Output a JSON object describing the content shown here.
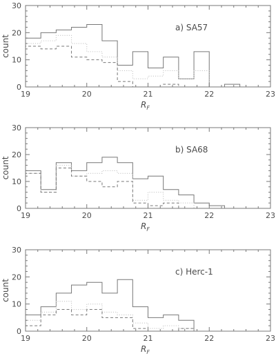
{
  "chart_data": [
    {
      "type": "histogram",
      "panel_label": "a) SA57",
      "xlabel": "R",
      "xlabel_subscript": "F",
      "ylabel": "count",
      "xlim": [
        19,
        23
      ],
      "ylim": [
        0,
        30
      ],
      "xticks": [
        "19",
        "20",
        "21",
        "22",
        "23"
      ],
      "yticks": [
        "0",
        "10",
        "20",
        "30"
      ],
      "bin_edges": [
        19.0,
        19.25,
        19.5,
        19.75,
        20.0,
        20.25,
        20.5,
        20.75,
        21.0,
        21.25,
        21.5,
        21.75,
        22.0,
        22.25,
        22.5
      ],
      "series": [
        {
          "style": "solid",
          "color": "#777777",
          "values": [
            18,
            20,
            21,
            22,
            23,
            17,
            8,
            13,
            7,
            11,
            3,
            13,
            0,
            1
          ]
        },
        {
          "style": "dotted",
          "color": "#c8c8c8",
          "values": [
            16,
            17,
            19,
            16,
            13,
            11,
            6,
            3,
            4,
            6,
            3,
            6,
            0,
            0
          ]
        },
        {
          "style": "dashed",
          "color": "#777777",
          "values": [
            15,
            14,
            15,
            11,
            10,
            9,
            2,
            0,
            0,
            1,
            0,
            0,
            0,
            0
          ]
        }
      ]
    },
    {
      "type": "histogram",
      "panel_label": "b) SA68",
      "xlabel": "R",
      "xlabel_subscript": "F",
      "ylabel": "count",
      "xlim": [
        19,
        23
      ],
      "ylim": [
        0,
        30
      ],
      "xticks": [
        "19",
        "20",
        "21",
        "22",
        "23"
      ],
      "yticks": [
        "0",
        "10",
        "20",
        "30"
      ],
      "bin_edges": [
        19.0,
        19.25,
        19.5,
        19.75,
        20.0,
        20.25,
        20.5,
        20.75,
        21.0,
        21.25,
        21.5,
        21.75,
        22.0,
        22.25,
        22.5
      ],
      "series": [
        {
          "style": "solid",
          "color": "#777777",
          "values": [
            14,
            7,
            17,
            14,
            17,
            19,
            17,
            11,
            12,
            7,
            5,
            2,
            1,
            0
          ]
        },
        {
          "style": "dotted",
          "color": "#c8c8c8",
          "values": [
            13,
            6,
            16,
            12,
            13,
            14,
            13,
            3,
            6,
            3,
            2,
            0,
            0,
            0
          ]
        },
        {
          "style": "dashed",
          "color": "#777777",
          "values": [
            13,
            6,
            15,
            12,
            10,
            8,
            10,
            2,
            1,
            2,
            0,
            0,
            0,
            0
          ]
        }
      ]
    },
    {
      "type": "histogram",
      "panel_label": "c) Herc-1",
      "xlabel": "R",
      "xlabel_subscript": "F",
      "ylabel": "count",
      "xlim": [
        19,
        23
      ],
      "ylim": [
        0,
        30
      ],
      "xticks": [
        "19",
        "20",
        "21",
        "22",
        "23"
      ],
      "yticks": [
        "0",
        "10",
        "20",
        "30"
      ],
      "bin_edges": [
        19.0,
        19.25,
        19.5,
        19.75,
        20.0,
        20.25,
        20.5,
        20.75,
        21.0,
        21.25,
        21.5,
        21.75,
        22.0,
        22.25,
        22.5
      ],
      "series": [
        {
          "style": "solid",
          "color": "#777777",
          "values": [
            6,
            9,
            14,
            17,
            18,
            14,
            19,
            9,
            5,
            6,
            4,
            0,
            0,
            0
          ]
        },
        {
          "style": "dotted",
          "color": "#c8c8c8",
          "values": [
            4,
            7,
            11,
            8,
            10,
            7,
            6,
            3,
            1,
            2,
            1,
            0,
            0,
            0
          ]
        },
        {
          "style": "dashed",
          "color": "#777777",
          "values": [
            2,
            6,
            8,
            6,
            8,
            5,
            5,
            1,
            0,
            0,
            1,
            0,
            0,
            0
          ]
        }
      ]
    }
  ]
}
